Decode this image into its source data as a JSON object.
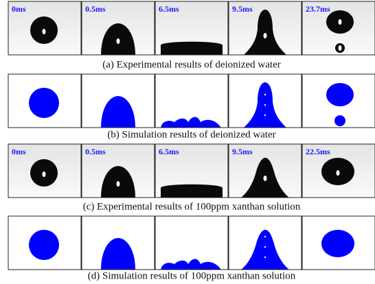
{
  "rows": [
    {
      "labels": [
        "0ms",
        "0.5ms",
        "6.5ms",
        "9.5ms",
        "23.7ms"
      ],
      "caption": "(a) Experimental results of deionized water"
    },
    {
      "caption": "(b) Simulation results of deionized water"
    },
    {
      "labels": [
        "0ms",
        "0.5ms",
        "6.5ms",
        "9.5ms",
        "22.5ms"
      ],
      "caption": "(c) Experimental results of 100ppm xanthan solution"
    },
    {
      "caption": "(d) Simulation results of 100ppm xanthan solution"
    }
  ]
}
